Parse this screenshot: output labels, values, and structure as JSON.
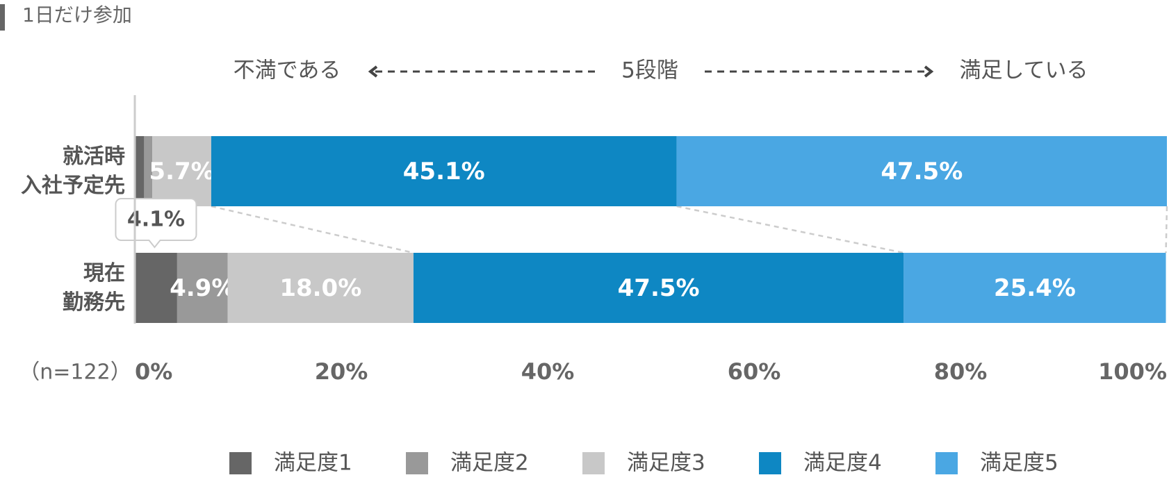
{
  "chart_data": {
    "type": "bar",
    "orientation": "horizontal",
    "stacked": true,
    "title": "1日だけ参加",
    "annotations": {
      "scale_left": "不満である",
      "scale_middle": "5段階",
      "scale_right": "満足している",
      "sample": "（n=122）"
    },
    "categories": [
      "就活時\n入社予定先",
      "現在\n勤務先"
    ],
    "series": [
      {
        "name": "満足度1",
        "color": "#666666",
        "values": [
          0.9,
          4.1
        ],
        "value_labels": [
          null,
          "4.1%"
        ]
      },
      {
        "name": "満足度2",
        "color": "#999999",
        "values": [
          0.8,
          4.9
        ],
        "value_labels": [
          null,
          "4.9%"
        ]
      },
      {
        "name": "満足度3",
        "color": "#c8c8c8",
        "values": [
          5.7,
          18.0
        ],
        "value_labels": [
          "5.7%",
          "18.0%"
        ]
      },
      {
        "name": "満足度4",
        "color": "#0e87c3",
        "values": [
          45.1,
          47.5
        ],
        "value_labels": [
          "45.1%",
          "47.5%"
        ]
      },
      {
        "name": "満足度5",
        "color": "#4aa7e3",
        "values": [
          47.5,
          25.4
        ],
        "value_labels": [
          "47.5%",
          "25.4%"
        ]
      }
    ],
    "xlim": [
      0,
      100
    ],
    "xticks": [
      {
        "value": 0,
        "label": "0%"
      },
      {
        "value": 20,
        "label": "20%"
      },
      {
        "value": 40,
        "label": "40%"
      },
      {
        "value": 60,
        "label": "60%"
      },
      {
        "value": 80,
        "label": "80%"
      },
      {
        "value": 100,
        "label": "100%"
      }
    ],
    "legend": "bottom"
  }
}
